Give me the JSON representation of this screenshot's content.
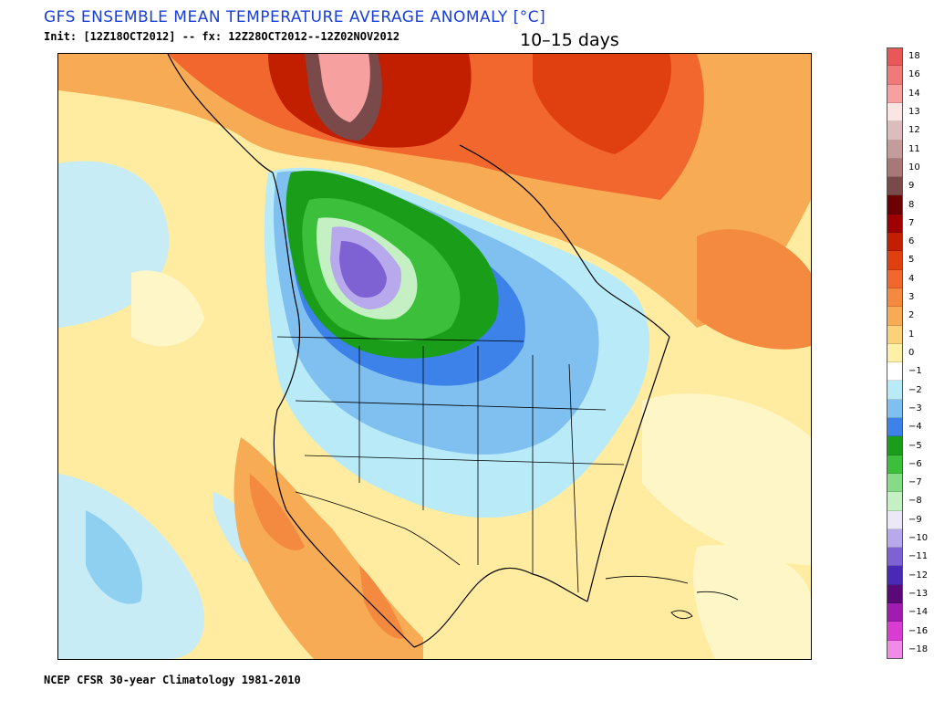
{
  "header": {
    "title": "GFS ENSEMBLE MEAN TEMPERATURE AVERAGE ANOMALY [°C]",
    "init_line": "Init: [12Z18OCT2012] -- fx: 12Z28OCT2012--12Z02NOV2012",
    "period": "10–15 days"
  },
  "footer": {
    "climatology": "NCEP CFSR 30-year Climatology 1981-2010"
  },
  "map": {
    "region": "North America",
    "base_color": "#ffeca0"
  },
  "colorbar": {
    "levels": [
      {
        "label": "18",
        "color": "#e85858"
      },
      {
        "label": "16",
        "color": "#f07a7a"
      },
      {
        "label": "14",
        "color": "#f6a0a0"
      },
      {
        "label": "13",
        "color": "#fbe4e4"
      },
      {
        "label": "12",
        "color": "#dcbcbc"
      },
      {
        "label": "11",
        "color": "#c49c9c"
      },
      {
        "label": "10",
        "color": "#a87878"
      },
      {
        "label": "9",
        "color": "#7a4a4a"
      },
      {
        "label": "8",
        "color": "#6a0000"
      },
      {
        "label": "7",
        "color": "#9e0000"
      },
      {
        "label": "6",
        "color": "#c21e00"
      },
      {
        "label": "5",
        "color": "#e04010"
      },
      {
        "label": "4",
        "color": "#f2672d"
      },
      {
        "label": "3",
        "color": "#f48a40"
      },
      {
        "label": "2",
        "color": "#f7ab55"
      },
      {
        "label": "1",
        "color": "#fbd27a"
      },
      {
        "label": "0",
        "color": "#fff0a8"
      },
      {
        "label": "−1",
        "color": "#ffffff"
      },
      {
        "label": "−2",
        "color": "#b8eaf8"
      },
      {
        "label": "−3",
        "color": "#7fc0f0"
      },
      {
        "label": "−4",
        "color": "#3c82e8"
      },
      {
        "label": "−5",
        "color": "#1a9e1a"
      },
      {
        "label": "−6",
        "color": "#3cc03c"
      },
      {
        "label": "−7",
        "color": "#86dc86"
      },
      {
        "label": "−8",
        "color": "#c4f0c4"
      },
      {
        "label": "−9",
        "color": "#ece8f8"
      },
      {
        "label": "−10",
        "color": "#b8a8ec"
      },
      {
        "label": "−11",
        "color": "#7e62d4"
      },
      {
        "label": "−12",
        "color": "#4a2ab4"
      },
      {
        "label": "−13",
        "color": "#5a0a78"
      },
      {
        "label": "−14",
        "color": "#a01cb0"
      },
      {
        "label": "−16",
        "color": "#d83cd0"
      },
      {
        "label": "−18",
        "color": "#f08ce8"
      }
    ]
  }
}
